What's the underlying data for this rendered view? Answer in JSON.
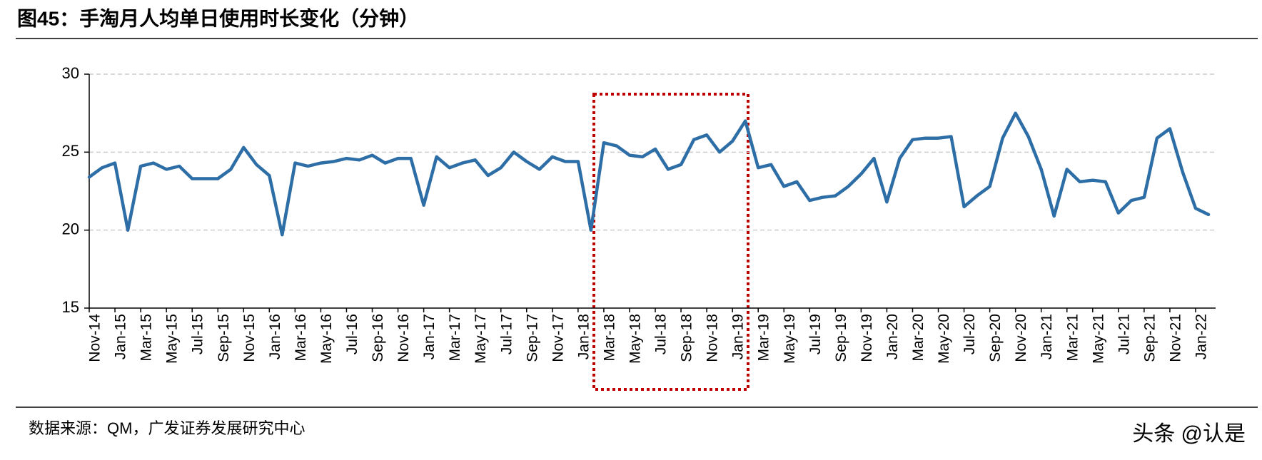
{
  "chart_data": {
    "type": "line",
    "title": "图45：手淘月人均单日使用时长变化（分钟）",
    "source": "数据来源：QM，广发证券发展研究中心",
    "watermark": "头条 @认是",
    "categories": [
      "Nov-14",
      null,
      "Jan-15",
      null,
      "Mar-15",
      null,
      "May-15",
      null,
      "Jul-15",
      null,
      "Sep-15",
      null,
      "Nov-15",
      null,
      "Jan-16",
      null,
      "Mar-16",
      null,
      "May-16",
      null,
      "Jul-16",
      null,
      "Sep-16",
      null,
      "Nov-16",
      null,
      "Jan-17",
      null,
      "Mar-17",
      null,
      "May-17",
      null,
      "Jul-17",
      null,
      "Sep-17",
      null,
      "Nov-17",
      null,
      "Jan-18",
      null,
      "Mar-18",
      null,
      "May-18",
      null,
      "Jul-18",
      null,
      "Sep-18",
      null,
      "Nov-18",
      null,
      "Jan-19",
      null,
      "Mar-19",
      null,
      "May-19",
      null,
      "Jul-19",
      null,
      "Sep-19",
      null,
      "Nov-19",
      null,
      "Jan-20",
      null,
      "Mar-20",
      null,
      "May-20",
      null,
      "Jul-20",
      null,
      "Sep-20",
      null,
      "Nov-20",
      null,
      "Jan-21",
      null,
      "Mar-21",
      null,
      "May-21",
      null,
      "Jul-21",
      null,
      "Sep-21",
      null,
      "Nov-21",
      null,
      "Jan-22",
      null
    ],
    "values": [
      23.4,
      24.0,
      24.3,
      20.0,
      24.1,
      24.3,
      23.9,
      24.1,
      23.3,
      23.3,
      23.3,
      23.9,
      25.3,
      24.2,
      23.5,
      19.7,
      24.3,
      24.1,
      24.3,
      24.4,
      24.6,
      24.5,
      24.8,
      24.3,
      24.6,
      24.6,
      21.6,
      24.7,
      24.0,
      24.3,
      24.5,
      23.5,
      24.0,
      25.0,
      24.4,
      23.9,
      24.7,
      24.4,
      24.4,
      20.0,
      25.6,
      25.4,
      24.8,
      24.7,
      25.2,
      23.9,
      24.2,
      25.8,
      26.1,
      25.0,
      25.7,
      27.0,
      24.0,
      24.2,
      22.8,
      23.1,
      21.9,
      22.1,
      22.2,
      22.8,
      23.6,
      24.6,
      21.8,
      24.6,
      25.8,
      25.9,
      25.9,
      26.0,
      21.5,
      22.2,
      22.8,
      25.9,
      27.5,
      26.0,
      23.9,
      20.9,
      23.9,
      23.1,
      23.2,
      23.1,
      21.1,
      21.9,
      22.1,
      25.9,
      26.5,
      23.7,
      21.4,
      21.0
    ],
    "color": "#2e6ea6",
    "ylim": [
      15,
      30
    ],
    "yticks": [
      15,
      20,
      25,
      30
    ],
    "grid": true
  }
}
